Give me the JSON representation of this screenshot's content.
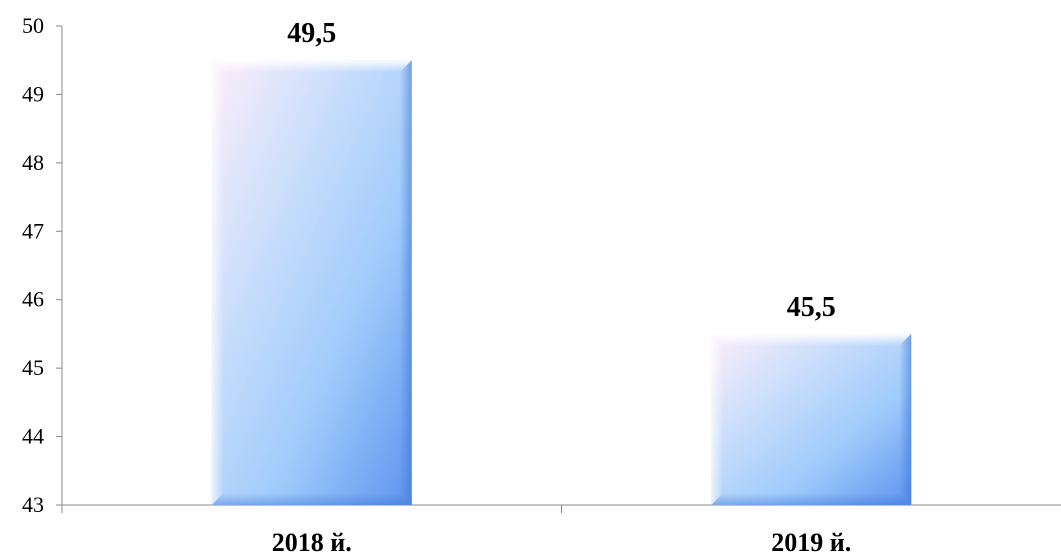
{
  "chart_data": {
    "type": "bar",
    "categories": [
      "2018 й.",
      "2019 й."
    ],
    "series": [
      {
        "values": [
          49.5,
          45.5
        ],
        "data_labels": [
          "49,5",
          "45,5"
        ]
      }
    ],
    "ylim": [
      43,
      50
    ],
    "yticks": [
      "43",
      "44",
      "45",
      "46",
      "47",
      "48",
      "49",
      "50"
    ],
    "title": "",
    "xlabel": "",
    "ylabel": "",
    "grid": false,
    "legend": "none",
    "colors": {
      "bar_light": "#fdeefa",
      "bar_mid": "#a9cdfb",
      "bar_dark": "#5d93ee",
      "bar_edge": "#ffffff",
      "axis": "#888888",
      "text": "#000000"
    }
  }
}
